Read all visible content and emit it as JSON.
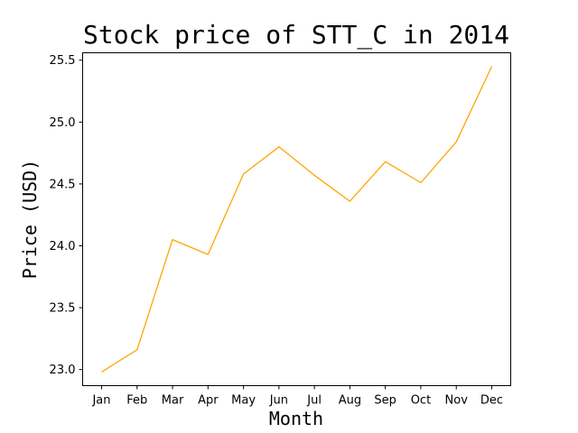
{
  "chart_data": {
    "type": "line",
    "title": "Stock price of STT_C in 2014",
    "xlabel": "Month",
    "ylabel": "Price (USD)",
    "categories": [
      "Jan",
      "Feb",
      "Mar",
      "Apr",
      "May",
      "Jun",
      "Jul",
      "Aug",
      "Sep",
      "Oct",
      "Nov",
      "Dec"
    ],
    "series": [
      {
        "color": "#ffa500",
        "values": [
          22.98,
          23.16,
          24.05,
          23.93,
          24.58,
          24.8,
          24.57,
          24.36,
          24.68,
          24.51,
          24.84,
          25.45
        ]
      }
    ],
    "ylim": [
      22.87,
      25.56
    ],
    "yticks": [
      23.0,
      23.5,
      24.0,
      24.5,
      25.0,
      25.5
    ],
    "ytick_labels": [
      "23.0",
      "23.5",
      "24.0",
      "24.5",
      "25.0",
      "25.5"
    ],
    "grid": false,
    "legend": "none"
  }
}
